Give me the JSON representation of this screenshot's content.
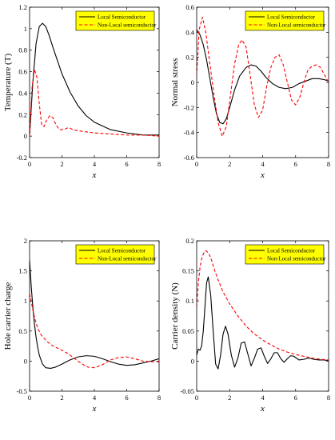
{
  "chart_data": [
    {
      "type": "line",
      "xlabel": "x",
      "ylabel": "Temperature (T)",
      "xlim": [
        0,
        8
      ],
      "ylim": [
        -0.2,
        1.2
      ],
      "xticks": [
        0,
        2,
        4,
        6,
        8
      ],
      "yticks": [
        -0.2,
        0,
        0.2,
        0.4,
        0.6,
        0.8,
        1,
        1.2
      ],
      "legend": {
        "position": "top-right",
        "background": "#ffff00"
      },
      "series": [
        {
          "name": "Local Semiconductor",
          "color": "#000000",
          "style": "solid",
          "x": [
            0,
            0.2,
            0.4,
            0.6,
            0.8,
            1.0,
            1.2,
            1.5,
            2.0,
            2.5,
            3.0,
            3.5,
            4.0,
            5.0,
            6.0,
            7.0,
            8.0
          ],
          "y": [
            0,
            0.5,
            0.86,
            1.02,
            1.05,
            1.02,
            0.94,
            0.8,
            0.58,
            0.41,
            0.28,
            0.19,
            0.13,
            0.06,
            0.03,
            0.01,
            0.01
          ]
        },
        {
          "name": "Non-Local semiconductor",
          "color": "#ff0000",
          "style": "dashed",
          "x": [
            0,
            0.15,
            0.3,
            0.45,
            0.6,
            0.75,
            0.9,
            1.05,
            1.25,
            1.45,
            1.65,
            1.85,
            2.1,
            2.4,
            2.7,
            3.0,
            3.5,
            4.0,
            5.0,
            6.0,
            7.0,
            8.0
          ],
          "y": [
            0,
            0.45,
            0.62,
            0.55,
            0.3,
            0.1,
            0.09,
            0.15,
            0.19,
            0.17,
            0.1,
            0.06,
            0.06,
            0.08,
            0.06,
            0.05,
            0.04,
            0.03,
            0.02,
            0.01,
            0.01,
            0.0
          ]
        }
      ]
    },
    {
      "type": "line",
      "xlabel": "x",
      "ylabel": "Normal stress",
      "xlim": [
        0,
        8
      ],
      "ylim": [
        -0.6,
        0.6
      ],
      "xticks": [
        0,
        2,
        4,
        6,
        8
      ],
      "yticks": [
        -0.6,
        -0.4,
        -0.2,
        0,
        0.2,
        0.4,
        0.6
      ],
      "legend": {
        "position": "top-right",
        "background": "#ffff00"
      },
      "series": [
        {
          "name": "Local Semiconductor",
          "color": "#000000",
          "style": "solid",
          "x": [
            0,
            0.2,
            0.4,
            0.6,
            0.8,
            1.0,
            1.2,
            1.4,
            1.6,
            1.8,
            2.0,
            2.3,
            2.6,
            3.0,
            3.3,
            3.6,
            3.9,
            4.2,
            4.6,
            5.0,
            5.4,
            5.8,
            6.2,
            6.6,
            7.0,
            7.4,
            7.8,
            8.0
          ],
          "y": [
            0.42,
            0.38,
            0.3,
            0.18,
            0.03,
            -0.12,
            -0.25,
            -0.32,
            -0.33,
            -0.29,
            -0.2,
            -0.06,
            0.05,
            0.12,
            0.14,
            0.13,
            0.09,
            0.04,
            -0.01,
            -0.04,
            -0.05,
            -0.04,
            -0.01,
            0.01,
            0.03,
            0.03,
            0.02,
            0.01
          ]
        },
        {
          "name": "Non-Local semiconductor",
          "color": "#ff0000",
          "style": "dashed",
          "x": [
            0,
            0.15,
            0.35,
            0.55,
            0.8,
            1.05,
            1.3,
            1.55,
            1.8,
            2.05,
            2.3,
            2.55,
            2.75,
            3.0,
            3.25,
            3.5,
            3.75,
            4.0,
            4.25,
            4.5,
            4.75,
            5.0,
            5.25,
            5.5,
            5.75,
            6.0,
            6.25,
            6.5,
            6.75,
            7.0,
            7.25,
            7.5,
            7.75,
            8.0
          ],
          "y": [
            0.05,
            0.42,
            0.52,
            0.4,
            0.15,
            -0.1,
            -0.32,
            -0.43,
            -0.35,
            -0.1,
            0.15,
            0.3,
            0.34,
            0.28,
            0.05,
            -0.18,
            -0.28,
            -0.22,
            -0.03,
            0.12,
            0.2,
            0.22,
            0.14,
            0.0,
            -0.14,
            -0.18,
            -0.12,
            0.0,
            0.1,
            0.13,
            0.14,
            0.12,
            0.06,
            0.0
          ]
        }
      ]
    },
    {
      "type": "line",
      "xlabel": "x",
      "ylabel": "Hole carrier charge",
      "xlim": [
        0,
        8
      ],
      "ylim": [
        -0.5,
        2
      ],
      "xticks": [
        0,
        2,
        4,
        6,
        8
      ],
      "yticks": [
        -0.5,
        0,
        0.5,
        1,
        1.5,
        2
      ],
      "legend": {
        "position": "top-right",
        "background": "#ffff00"
      },
      "series": [
        {
          "name": "Local Semiconductor",
          "color": "#000000",
          "style": "solid",
          "x": [
            0,
            0.1,
            0.2,
            0.3,
            0.4,
            0.5,
            0.6,
            0.8,
            1.0,
            1.3,
            1.6,
            2.0,
            2.5,
            3.0,
            3.5,
            4.0,
            4.5,
            5.0,
            5.5,
            6.0,
            6.5,
            7.0,
            7.5,
            8.0
          ],
          "y": [
            1.68,
            1.25,
            0.9,
            0.62,
            0.4,
            0.23,
            0.1,
            -0.05,
            -0.11,
            -0.12,
            -0.1,
            -0.05,
            0.02,
            0.07,
            0.09,
            0.08,
            0.04,
            -0.01,
            -0.05,
            -0.07,
            -0.06,
            -0.03,
            0.0,
            0.04
          ]
        },
        {
          "name": "Non-Local semiconductor",
          "color": "#ff0000",
          "style": "dashed",
          "x": [
            0,
            0.1,
            0.2,
            0.35,
            0.5,
            0.7,
            0.9,
            1.1,
            1.4,
            1.7,
            2.0,
            2.4,
            2.8,
            3.2,
            3.6,
            4.0,
            4.5,
            5.0,
            5.5,
            6.0,
            6.5,
            7.0,
            7.5,
            8.0
          ],
          "y": [
            1.12,
            1.0,
            0.85,
            0.68,
            0.55,
            0.44,
            0.38,
            0.32,
            0.26,
            0.22,
            0.18,
            0.12,
            0.04,
            -0.04,
            -0.1,
            -0.11,
            -0.06,
            0.02,
            0.06,
            0.07,
            0.04,
            0.0,
            -0.01,
            -0.01
          ]
        }
      ]
    },
    {
      "type": "line",
      "xlabel": "x",
      "ylabel": "Carrier density (N)",
      "xlim": [
        0,
        8
      ],
      "ylim": [
        -0.05,
        0.2
      ],
      "xticks": [
        0,
        2,
        4,
        6,
        8
      ],
      "yticks": [
        -0.05,
        0,
        0.05,
        0.1,
        0.15,
        0.2
      ],
      "legend": {
        "position": "top-right",
        "background": "#ffff00"
      },
      "series": [
        {
          "name": "Local Semiconductor",
          "color": "#000000",
          "style": "solid",
          "x": [
            0,
            0.1,
            0.2,
            0.3,
            0.4,
            0.5,
            0.6,
            0.7,
            0.85,
            1.0,
            1.15,
            1.3,
            1.45,
            1.6,
            1.75,
            1.9,
            2.1,
            2.3,
            2.5,
            2.7,
            2.9,
            3.1,
            3.3,
            3.5,
            3.7,
            3.9,
            4.1,
            4.3,
            4.5,
            4.7,
            4.9,
            5.1,
            5.3,
            5.5,
            5.7,
            5.9,
            6.2,
            6.5,
            6.8,
            7.1,
            7.4,
            7.7,
            8.0
          ],
          "y": [
            0.01,
            0.02,
            0.018,
            0.025,
            0.05,
            0.09,
            0.13,
            0.14,
            0.11,
            0.05,
            -0.005,
            -0.013,
            0.01,
            0.045,
            0.058,
            0.045,
            0.01,
            -0.01,
            0.005,
            0.03,
            0.032,
            0.012,
            -0.008,
            0.005,
            0.02,
            0.022,
            0.008,
            -0.004,
            0.004,
            0.014,
            0.014,
            0.004,
            -0.002,
            0.004,
            0.009,
            0.008,
            0.002,
            0.003,
            0.005,
            0.003,
            0.002,
            0.002,
            0.001
          ]
        },
        {
          "name": "Non-Local semiconductor",
          "color": "#ff0000",
          "style": "dashed",
          "x": [
            0,
            0.1,
            0.2,
            0.3,
            0.4,
            0.5,
            0.6,
            0.75,
            0.9,
            1.1,
            1.3,
            1.6,
            2.0,
            2.5,
            3.0,
            3.5,
            4.0,
            4.5,
            5.0,
            5.5,
            6.0,
            6.5,
            7.0,
            7.5,
            8.0
          ],
          "y": [
            0.09,
            0.13,
            0.155,
            0.17,
            0.178,
            0.183,
            0.183,
            0.178,
            0.168,
            0.15,
            0.135,
            0.115,
            0.095,
            0.075,
            0.058,
            0.045,
            0.035,
            0.027,
            0.02,
            0.015,
            0.011,
            0.008,
            0.005,
            0.003,
            0.002
          ]
        }
      ]
    }
  ]
}
